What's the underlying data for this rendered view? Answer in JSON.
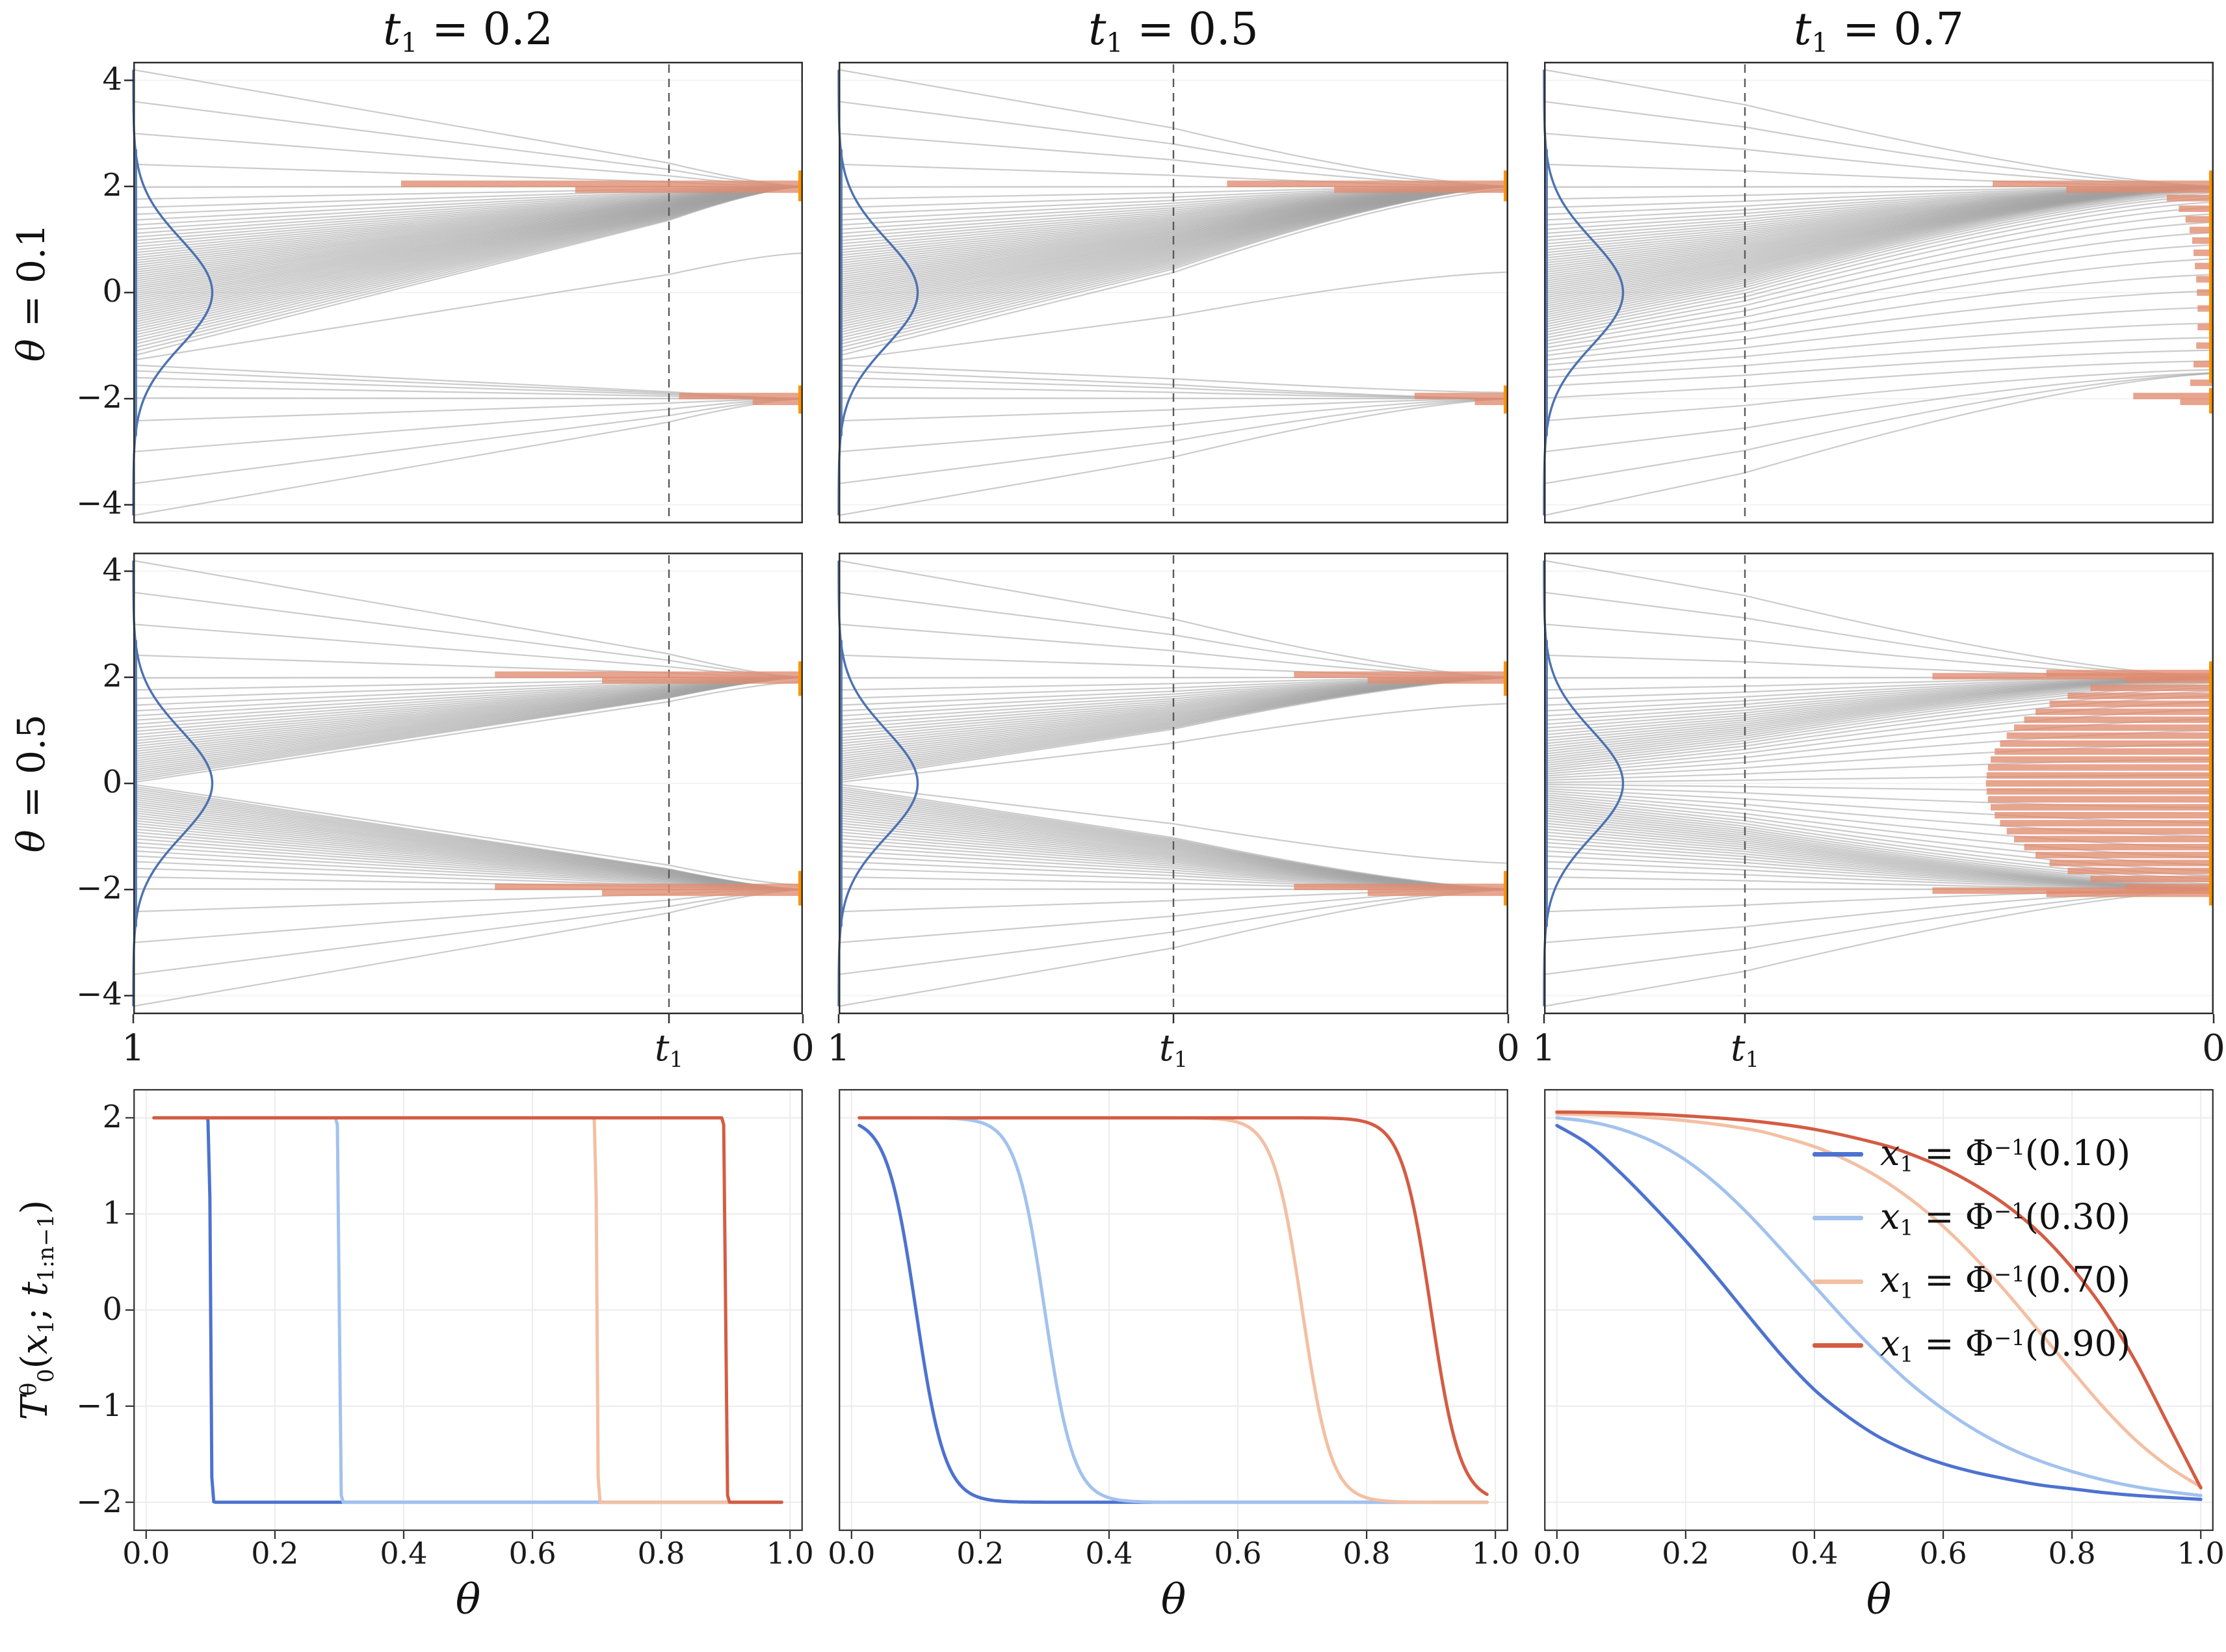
{
  "figure": {
    "bg": "#ffffff",
    "col_titles": [
      {
        "var": "t",
        "sub": "1",
        "rest": " = 0.2"
      },
      {
        "var": "t",
        "sub": "1",
        "rest": " = 0.5"
      },
      {
        "var": "t",
        "sub": "1",
        "rest": " = 0.7"
      }
    ],
    "row_labels": [
      {
        "var": "θ",
        "rest": " = 0.1"
      },
      {
        "var": "θ",
        "rest": " = 0.5"
      }
    ],
    "traj_xticks": {
      "left": "1",
      "mid_var": "t",
      "mid_sub": "1",
      "right": "0"
    },
    "map_ylabel": {
      "base": "T",
      "sup": "θ",
      "sub": "0",
      "open": "(",
      "xvar": "x",
      "xsub": "1",
      "sep": "; ",
      "tvar": "t",
      "tsub": "1:n−1",
      "close": ")"
    },
    "map_xlabel": "θ"
  },
  "chart_data": [
    {
      "type": "line",
      "name": "interpolant-trajectory-panels",
      "x_axis": {
        "domain": [
          1,
          0
        ],
        "tick_labels": [
          "1",
          "t1",
          "0"
        ]
      },
      "y_axis": {
        "lim": [
          -4.35,
          4.35
        ],
        "ticks": [
          -4,
          -2,
          0,
          2,
          4
        ],
        "tick_labels": [
          "−4",
          "−2",
          "0",
          "2",
          "4"
        ]
      },
      "n_quantiles": 64,
      "extreme_starts": [
        -4.2,
        -3.6,
        -3.0,
        3.0,
        3.6,
        4.2
      ],
      "targets": [
        2,
        -2
      ],
      "source_density": "standard normal pdf drawn vertically at t=1",
      "colors": {
        "trajectory": "#a0a0a0",
        "density": "#4C72B0",
        "hist": "#e08a6e",
        "edge_rug": "#ff9500",
        "dashed": "#5a5a5a"
      },
      "rows": [
        {
          "theta": 0.1
        },
        {
          "theta": 0.5
        }
      ],
      "cols": [
        {
          "t1": 0.2,
          "endpoint_width": 0.004
        },
        {
          "t1": 0.5,
          "endpoint_width": 0.008
        },
        {
          "t1": 0.7,
          "endpoint_width": 0.1
        }
      ],
      "panels": [
        {
          "row": 0,
          "col": 0,
          "hist": [
            [
              2.05,
              0.6
            ],
            [
              1.94,
              0.34
            ],
            [
              -1.95,
              0.185
            ],
            [
              -2.06,
              0.075
            ]
          ],
          "edge": [
            [
              1.72,
              2.3
            ],
            [
              -2.28,
              -1.75
            ]
          ]
        },
        {
          "row": 0,
          "col": 1,
          "hist": [
            [
              2.05,
              0.42
            ],
            [
              1.94,
              0.26
            ],
            [
              -1.95,
              0.14
            ],
            [
              -2.06,
              0.05
            ]
          ],
          "edge": [
            [
              1.72,
              2.3
            ],
            [
              -2.28,
              -1.75
            ]
          ]
        },
        {
          "row": 0,
          "col": 2,
          "hist": [
            [
              2.05,
              0.33
            ],
            [
              1.94,
              0.22
            ],
            [
              1.78,
              0.07
            ],
            [
              1.58,
              0.052
            ],
            [
              1.38,
              0.042
            ],
            [
              1.18,
              0.036
            ],
            [
              0.98,
              0.032
            ],
            [
              0.75,
              0.03
            ],
            [
              0.5,
              0.028
            ],
            [
              0.25,
              0.026
            ],
            [
              0.0,
              0.025
            ],
            [
              -0.3,
              0.024
            ],
            [
              -0.65,
              0.024
            ],
            [
              -1.0,
              0.026
            ],
            [
              -1.35,
              0.03
            ],
            [
              -1.7,
              0.035
            ],
            [
              -1.95,
              0.12
            ],
            [
              -2.06,
              0.05
            ]
          ],
          "edge": [
            [
              -1.7,
              2.3
            ],
            [
              -2.28,
              -1.8
            ]
          ]
        },
        {
          "row": 1,
          "col": 0,
          "hist": [
            [
              2.05,
              0.46
            ],
            [
              1.94,
              0.3
            ],
            [
              -1.95,
              0.46
            ],
            [
              -2.06,
              0.3
            ]
          ],
          "edge": [
            [
              1.65,
              2.3
            ],
            [
              -2.3,
              -1.65
            ]
          ]
        },
        {
          "row": 1,
          "col": 1,
          "hist": [
            [
              2.05,
              0.32
            ],
            [
              1.94,
              0.21
            ],
            [
              -1.95,
              0.32
            ],
            [
              -2.06,
              0.21
            ]
          ],
          "edge": [
            [
              1.65,
              2.3
            ],
            [
              -2.3,
              -1.65
            ]
          ]
        },
        {
          "row": 1,
          "col": 2,
          "hist": [
            [
              0,
              0.34
            ],
            [
              0.15,
              0.339
            ],
            [
              -0.15,
              0.339
            ],
            [
              0.3,
              0.337
            ],
            [
              -0.3,
              0.337
            ],
            [
              0.45,
              0.333
            ],
            [
              -0.45,
              0.333
            ],
            [
              0.6,
              0.327
            ],
            [
              -0.6,
              0.327
            ],
            [
              0.75,
              0.319
            ],
            [
              -0.75,
              0.319
            ],
            [
              0.9,
              0.309
            ],
            [
              -0.9,
              0.309
            ],
            [
              1.05,
              0.298
            ],
            [
              -1.05,
              0.298
            ],
            [
              1.2,
              0.283
            ],
            [
              -1.2,
              0.283
            ],
            [
              1.35,
              0.266
            ],
            [
              -1.35,
              0.266
            ],
            [
              1.5,
              0.245
            ],
            [
              -1.5,
              0.245
            ],
            [
              1.65,
              0.218
            ],
            [
              -1.65,
              0.218
            ],
            [
              1.8,
              0.184
            ],
            [
              -1.8,
              0.184
            ],
            [
              1.95,
              0.132
            ],
            [
              -1.95,
              0.132
            ],
            [
              2.02,
              0.42
            ],
            [
              -2.02,
              0.42
            ],
            [
              2.08,
              0.25
            ],
            [
              -2.08,
              0.25
            ]
          ],
          "edge": [
            [
              -2.3,
              2.3
            ]
          ]
        }
      ]
    },
    {
      "type": "line",
      "name": "transport-map-vs-theta-panels",
      "x_axis": {
        "label": "θ",
        "lim": [
          -0.02,
          1.02
        ],
        "ticks": [
          0,
          0.2,
          0.4,
          0.6,
          0.8,
          1
        ],
        "tick_labels": [
          "0.0",
          "0.2",
          "0.4",
          "0.6",
          "0.8",
          "1.0"
        ]
      },
      "y_axis": {
        "label": "T_0^θ(x_1; t_{1:n−1})",
        "lim": [
          -2.3,
          2.3
        ],
        "ticks": [
          -2,
          -1,
          0,
          1,
          2
        ],
        "tick_labels": [
          "−2",
          "−1",
          "0",
          "1",
          "2"
        ]
      },
      "quantiles": [
        0.1,
        0.3,
        0.7,
        0.9
      ],
      "colors": [
        "#4d72d0",
        "#a2c2ee",
        "#f3bfa3",
        "#d45c43"
      ],
      "panels": [
        {
          "t1": 0.2,
          "mode": "tanh",
          "w": 0.0015
        },
        {
          "t1": 0.5,
          "mode": "tanh",
          "w": 0.045
        },
        {
          "t1": 0.7,
          "mode": "points",
          "series": [
            {
              "q": 0.1,
              "points": [
                [
                  0.0,
                  1.92
                ],
                [
                  0.05,
                  1.72
                ],
                [
                  0.1,
                  1.42
                ],
                [
                  0.15,
                  1.08
                ],
                [
                  0.2,
                  0.72
                ],
                [
                  0.25,
                  0.33
                ],
                [
                  0.3,
                  -0.08
                ],
                [
                  0.35,
                  -0.48
                ],
                [
                  0.4,
                  -0.83
                ],
                [
                  0.45,
                  -1.1
                ],
                [
                  0.5,
                  -1.32
                ],
                [
                  0.55,
                  -1.48
                ],
                [
                  0.6,
                  -1.6
                ],
                [
                  0.65,
                  -1.69
                ],
                [
                  0.7,
                  -1.76
                ],
                [
                  0.75,
                  -1.82
                ],
                [
                  0.8,
                  -1.86
                ],
                [
                  0.85,
                  -1.9
                ],
                [
                  0.9,
                  -1.93
                ],
                [
                  0.95,
                  -1.95
                ],
                [
                  1.0,
                  -1.97
                ]
              ]
            },
            {
              "q": 0.3,
              "points": [
                [
                  0.0,
                  2.0
                ],
                [
                  0.05,
                  1.96
                ],
                [
                  0.1,
                  1.88
                ],
                [
                  0.15,
                  1.75
                ],
                [
                  0.2,
                  1.56
                ],
                [
                  0.25,
                  1.3
                ],
                [
                  0.3,
                  0.98
                ],
                [
                  0.35,
                  0.62
                ],
                [
                  0.4,
                  0.25
                ],
                [
                  0.45,
                  -0.12
                ],
                [
                  0.5,
                  -0.46
                ],
                [
                  0.55,
                  -0.77
                ],
                [
                  0.6,
                  -1.03
                ],
                [
                  0.65,
                  -1.25
                ],
                [
                  0.7,
                  -1.43
                ],
                [
                  0.75,
                  -1.57
                ],
                [
                  0.8,
                  -1.68
                ],
                [
                  0.85,
                  -1.77
                ],
                [
                  0.9,
                  -1.84
                ],
                [
                  0.95,
                  -1.89
                ],
                [
                  1.0,
                  -1.93
                ]
              ]
            },
            {
              "q": 0.7,
              "points": [
                [
                  0.0,
                  2.04
                ],
                [
                  0.1,
                  2.02
                ],
                [
                  0.2,
                  1.97
                ],
                [
                  0.3,
                  1.88
                ],
                [
                  0.35,
                  1.8
                ],
                [
                  0.4,
                  1.7
                ],
                [
                  0.45,
                  1.56
                ],
                [
                  0.5,
                  1.38
                ],
                [
                  0.55,
                  1.15
                ],
                [
                  0.6,
                  0.87
                ],
                [
                  0.65,
                  0.54
                ],
                [
                  0.7,
                  0.17
                ],
                [
                  0.75,
                  -0.23
                ],
                [
                  0.8,
                  -0.63
                ],
                [
                  0.85,
                  -1.02
                ],
                [
                  0.9,
                  -1.36
                ],
                [
                  0.95,
                  -1.63
                ],
                [
                  1.0,
                  -1.84
                ]
              ]
            },
            {
              "q": 0.9,
              "points": [
                [
                  0.0,
                  2.06
                ],
                [
                  0.1,
                  2.05
                ],
                [
                  0.2,
                  2.02
                ],
                [
                  0.3,
                  1.97
                ],
                [
                  0.4,
                  1.88
                ],
                [
                  0.5,
                  1.73
                ],
                [
                  0.55,
                  1.62
                ],
                [
                  0.6,
                  1.48
                ],
                [
                  0.65,
                  1.3
                ],
                [
                  0.7,
                  1.08
                ],
                [
                  0.75,
                  0.8
                ],
                [
                  0.8,
                  0.44
                ],
                [
                  0.85,
                  0.0
                ],
                [
                  0.9,
                  -0.55
                ],
                [
                  0.95,
                  -1.2
                ],
                [
                  1.0,
                  -1.85
                ]
              ]
            }
          ]
        }
      ],
      "legend": {
        "entries": [
          {
            "var": "x",
            "var_sub": "1",
            "mid": " = Φ",
            "sup": "−1",
            "tail": "(0.10)"
          },
          {
            "var": "x",
            "var_sub": "1",
            "mid": " = Φ",
            "sup": "−1",
            "tail": "(0.30)"
          },
          {
            "var": "x",
            "var_sub": "1",
            "mid": " = Φ",
            "sup": "−1",
            "tail": "(0.70)"
          },
          {
            "var": "x",
            "var_sub": "1",
            "mid": " = Φ",
            "sup": "−1",
            "tail": "(0.90)"
          }
        ]
      }
    }
  ]
}
